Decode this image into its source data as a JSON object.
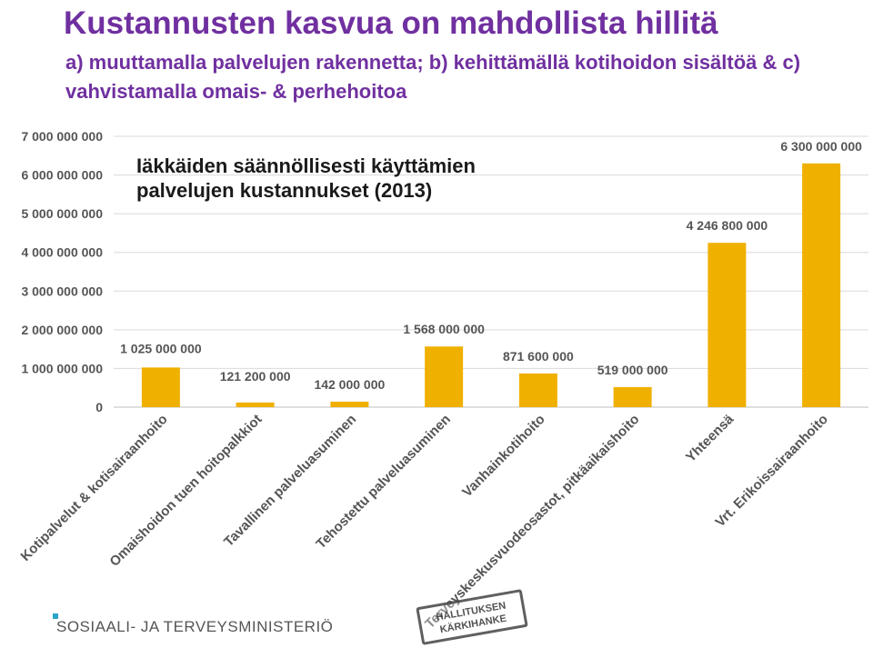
{
  "header": {
    "title": "Kustannusten kasvua on mahdollista hillitä",
    "subtitle": "a) muuttamalla  palvelujen rakennetta; b) kehittämällä kotihoidon sisältöä & c) vahvistamalla omais- & perhehoitoa"
  },
  "footer": {
    "logo_text": "SOSIAALI- JA TERVEYSMINISTERIÖ",
    "logo_color": "#2aa4c8",
    "stamp_line1": "HALLITUKSEN",
    "stamp_line2": "KÄRKIHANKE"
  },
  "chart_data": {
    "type": "bar",
    "title": "Iäkkäiden säännöllisesti käyttämien palvelujen kustannukset (2013)",
    "title_lines": [
      "Iäkkäiden säännöllisesti käyttämien",
      "palvelujen kustannukset (2013)"
    ],
    "categories": [
      "Kotipalvelut & kotisairaanhoito",
      "Omaishoidon tuen hoitopalkkiot",
      "Tavallinen palveluasuminen",
      "Tehostettu palveluasuminen",
      "Vanhainkotihoito",
      "Terveyskeskusvuodeosastot, pitkäaikaishoito",
      "Yhteensä",
      "Vrt. Erikoissairaanhoito"
    ],
    "values": [
      1025000000,
      121200000,
      142000000,
      1568000000,
      871600000,
      519000000,
      4246800000,
      6300000000
    ],
    "data_labels": [
      "1 025 000 000",
      "121 200 000",
      "142 000 000",
      "1 568 000 000",
      "871 600 000",
      "519 000 000",
      "4 246 800 000",
      "6 300 000 000"
    ],
    "yticks": [
      0,
      1000000000,
      2000000000,
      3000000000,
      4000000000,
      5000000000,
      6000000000,
      7000000000
    ],
    "ytick_labels": [
      "0",
      "1 000 000 000",
      "2 000 000 000",
      "3 000 000 000",
      "4 000 000 000",
      "5 000 000 000",
      "6 000 000 000",
      "7 000 000 000"
    ],
    "ylim": [
      0,
      7000000000
    ],
    "grid": true,
    "bar_color": "#f0b000",
    "grid_color": "#d9d9d9"
  }
}
